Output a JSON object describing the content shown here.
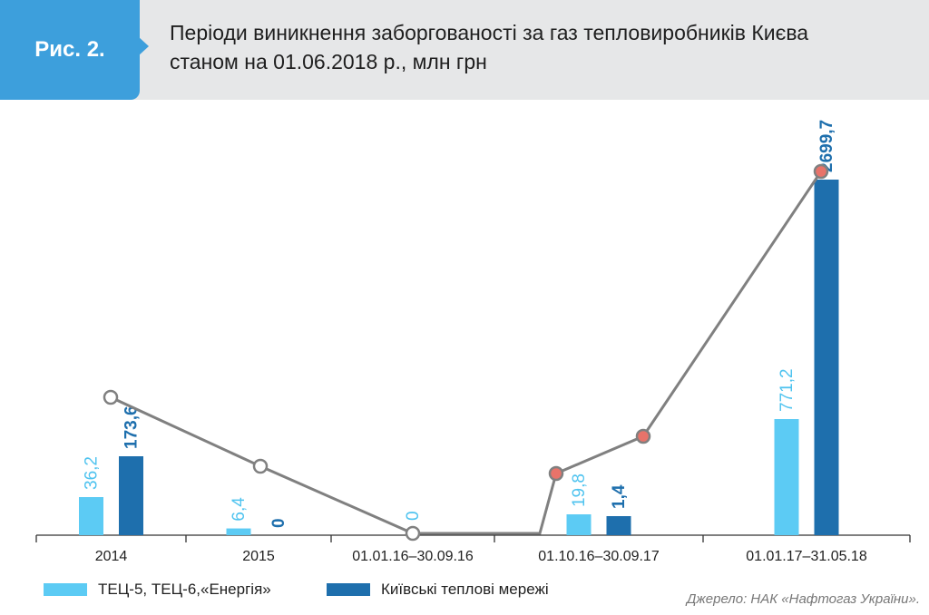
{
  "figure": {
    "badge": "Рис. 2.",
    "title_line1": "Періоди виникнення заборгованості за газ тепловиробників Києва",
    "title_line2": "станом на 01.06.2018 р., млн грн"
  },
  "source": "Джерело: НАК «Нафтогаз України».",
  "colors": {
    "series1": "#5ccbf4",
    "series2": "#1e6fad",
    "line": "#808080",
    "marker_open": "#ffffff",
    "marker_red": "#e8736a",
    "label1": "#4fc3ef",
    "label2": "#1e6fad"
  },
  "chart_data": {
    "type": "bar",
    "categories": [
      "2014",
      "2015",
      "01.01.16–30.09.16",
      "01.10.16–30.09.17",
      "01.01.17–31.05.18"
    ],
    "series": [
      {
        "name": "ТЕЦ-5, ТЕЦ-6,«Енергія»",
        "values": [
          36.2,
          6.4,
          null,
          19.8,
          771.2
        ],
        "labels": [
          "36,2",
          "6,4",
          "",
          "19,8",
          "771,2"
        ]
      },
      {
        "name": "Київські теплові мережі",
        "values": [
          173.6,
          0,
          null,
          1.4,
          2699.7
        ],
        "labels": [
          "173,6",
          "0",
          "",
          "1,4",
          "2699,7"
        ]
      }
    ],
    "mid_label": "0",
    "line": {
      "description": "connecting markers",
      "points": [
        {
          "category": 0,
          "marker": "open"
        },
        {
          "category": 1,
          "marker": "open"
        },
        {
          "category": 2,
          "marker": "open"
        },
        {
          "category": 3,
          "marker": "red"
        },
        {
          "category": 3.5,
          "marker": "red"
        },
        {
          "category": 4,
          "marker": "red"
        }
      ]
    },
    "legend_position": "bottom-left",
    "grid": false
  }
}
